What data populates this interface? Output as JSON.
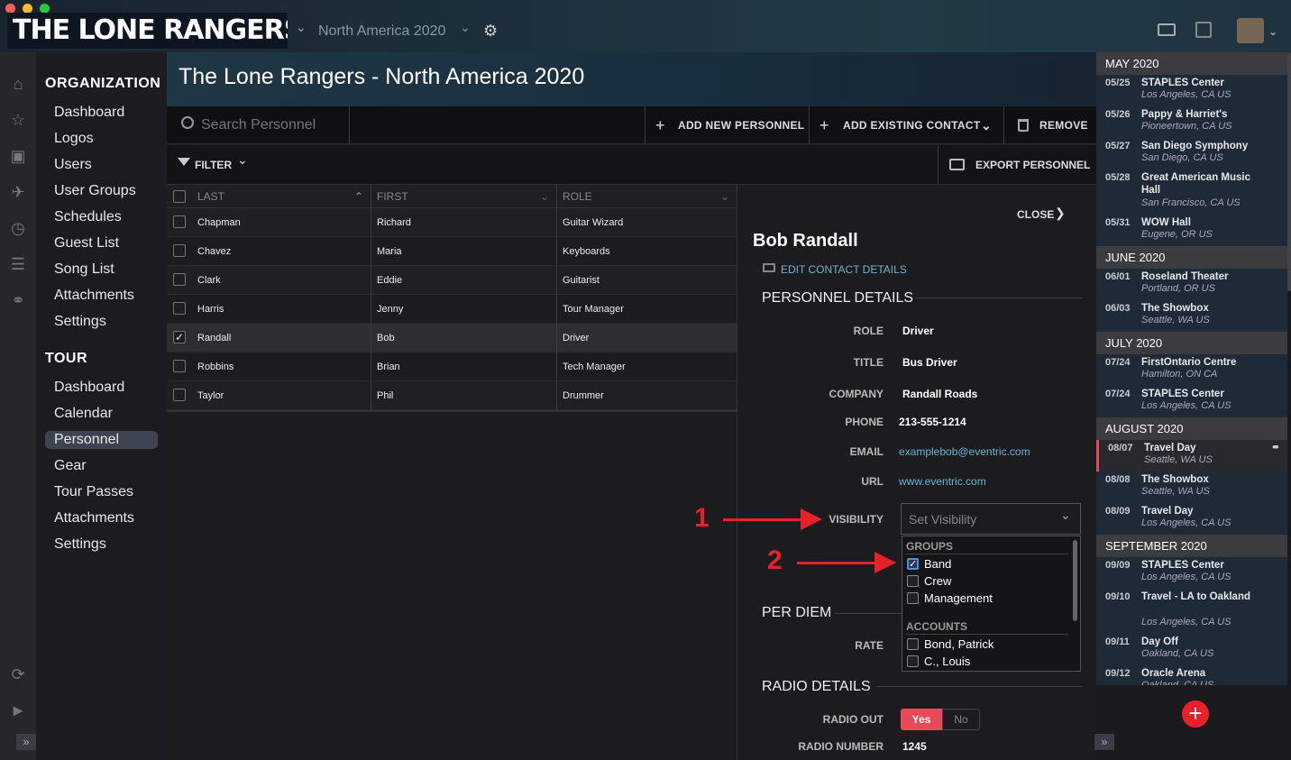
{
  "app": {
    "logo": "THE LONE RANGERS",
    "tour_select": "North America 2020"
  },
  "nav": {
    "org_heading": "ORGANIZATION",
    "org_items": [
      "Dashboard",
      "Logos",
      "Users",
      "User Groups",
      "Schedules",
      "Guest List",
      "Song List",
      "Attachments",
      "Settings"
    ],
    "tour_heading": "TOUR",
    "tour_items": [
      "Dashboard",
      "Calendar",
      "Personnel",
      "Gear",
      "Tour Passes",
      "Attachments",
      "Settings"
    ],
    "selected": "Personnel"
  },
  "page": {
    "title": "The Lone Rangers - North America 2020"
  },
  "toolbar": {
    "search_placeholder": "Search Personnel",
    "add_new": "ADD NEW PERSONNEL",
    "add_existing": "ADD EXISTING CONTACT",
    "remove": "REMOVE",
    "filter": "FILTER",
    "export": "EXPORT PERSONNEL"
  },
  "grid": {
    "columns": [
      "LAST",
      "FIRST",
      "ROLE"
    ],
    "rows": [
      {
        "last": "Chapman",
        "first": "Richard",
        "role": "Guitar Wizard",
        "checked": false
      },
      {
        "last": "Chavez",
        "first": "Maria",
        "role": "Keyboards",
        "checked": false
      },
      {
        "last": "Clark",
        "first": "Eddie",
        "role": "Guitarist",
        "checked": false
      },
      {
        "last": "Harris",
        "first": "Jenny",
        "role": "Tour Manager",
        "checked": false
      },
      {
        "last": "Randall",
        "first": "Bob",
        "role": "Driver",
        "checked": true
      },
      {
        "last": "Robbins",
        "first": "Brian",
        "role": "Tech Manager",
        "checked": false
      },
      {
        "last": "Taylor",
        "first": "Phil",
        "role": "Drummer",
        "checked": false
      }
    ]
  },
  "detail": {
    "close": "CLOSE",
    "name": "Bob Randall",
    "edit": "EDIT CONTACT DETAILS",
    "section_personnel": "PERSONNEL DETAILS",
    "role_label": "ROLE",
    "role": "Driver",
    "title_label": "TITLE",
    "title": "Bus Driver",
    "company_label": "COMPANY",
    "company": "Randall Roads",
    "phone_label": "PHONE",
    "phone": "213-555-1214",
    "email_label": "EMAIL",
    "email": "examplebob@eventric.com",
    "url_label": "URL",
    "url": "www.eventric.com",
    "visibility_label": "VISIBILITY",
    "visibility_placeholder": "Set Visibility",
    "section_perdiem": "PER DIEM",
    "rate_label": "RATE",
    "section_radio": "RADIO DETAILS",
    "radio_out_label": "RADIO OUT",
    "radio_yes": "Yes",
    "radio_no": "No",
    "radio_number_label": "RADIO NUMBER",
    "radio_number": "1245",
    "dropdown": {
      "groups_heading": "GROUPS",
      "groups": [
        {
          "name": "Band",
          "checked": true
        },
        {
          "name": "Crew",
          "checked": false
        },
        {
          "name": "Management",
          "checked": false
        }
      ],
      "accounts_heading": "ACCOUNTS",
      "accounts": [
        {
          "name": "Bond, Patrick",
          "checked": false
        },
        {
          "name": "C., Louis",
          "checked": false
        }
      ]
    }
  },
  "annotations": {
    "one": "1",
    "two": "2"
  },
  "schedule": {
    "months": [
      {
        "name": "MAY 2020",
        "events": [
          {
            "date": "05/25",
            "name": "STAPLES Center",
            "loc": "Los Angeles, CA US"
          },
          {
            "date": "05/26",
            "name": "Pappy & Harriet's",
            "loc": "Pioneertown, CA US"
          },
          {
            "date": "05/27",
            "name": "San Diego Symphony",
            "loc": "San Diego, CA US"
          },
          {
            "date": "05/28",
            "name": "Great American Music Hall",
            "loc": "San Francisco, CA US"
          },
          {
            "date": "05/31",
            "name": "WOW Hall",
            "loc": "Eugene, OR US"
          }
        ]
      },
      {
        "name": "JUNE 2020",
        "events": [
          {
            "date": "06/01",
            "name": "Roseland Theater",
            "loc": "Portland, OR US"
          },
          {
            "date": "06/03",
            "name": "The Showbox",
            "loc": "Seattle, WA US"
          }
        ]
      },
      {
        "name": "JULY 2020",
        "events": [
          {
            "date": "07/24",
            "name": "FirstOntario Centre",
            "loc": "Hamilton, ON CA"
          },
          {
            "date": "07/24",
            "name": "STAPLES Center",
            "loc": "Los Angeles, CA US"
          }
        ]
      },
      {
        "name": "AUGUST 2020",
        "events": [
          {
            "date": "08/07",
            "name": "Travel Day",
            "loc": "Seattle, WA US"
          },
          {
            "date": "08/08",
            "name": "The Showbox",
            "loc": "Seattle, WA US"
          },
          {
            "date": "08/09",
            "name": "Travel Day",
            "loc": "Los Angeles, CA US"
          }
        ]
      },
      {
        "name": "SEPTEMBER 2020",
        "events": [
          {
            "date": "09/09",
            "name": "STAPLES Center",
            "loc": "Los Angeles, CA US"
          },
          {
            "date": "09/10",
            "name": "Travel - LA to Oakland",
            "loc": "Los Angeles, CA US"
          },
          {
            "date": "09/11",
            "name": "Day Off",
            "loc": "Oakland, CA US"
          },
          {
            "date": "09/12",
            "name": "Oracle Arena",
            "loc": "Oakland, CA US"
          }
        ]
      }
    ]
  }
}
